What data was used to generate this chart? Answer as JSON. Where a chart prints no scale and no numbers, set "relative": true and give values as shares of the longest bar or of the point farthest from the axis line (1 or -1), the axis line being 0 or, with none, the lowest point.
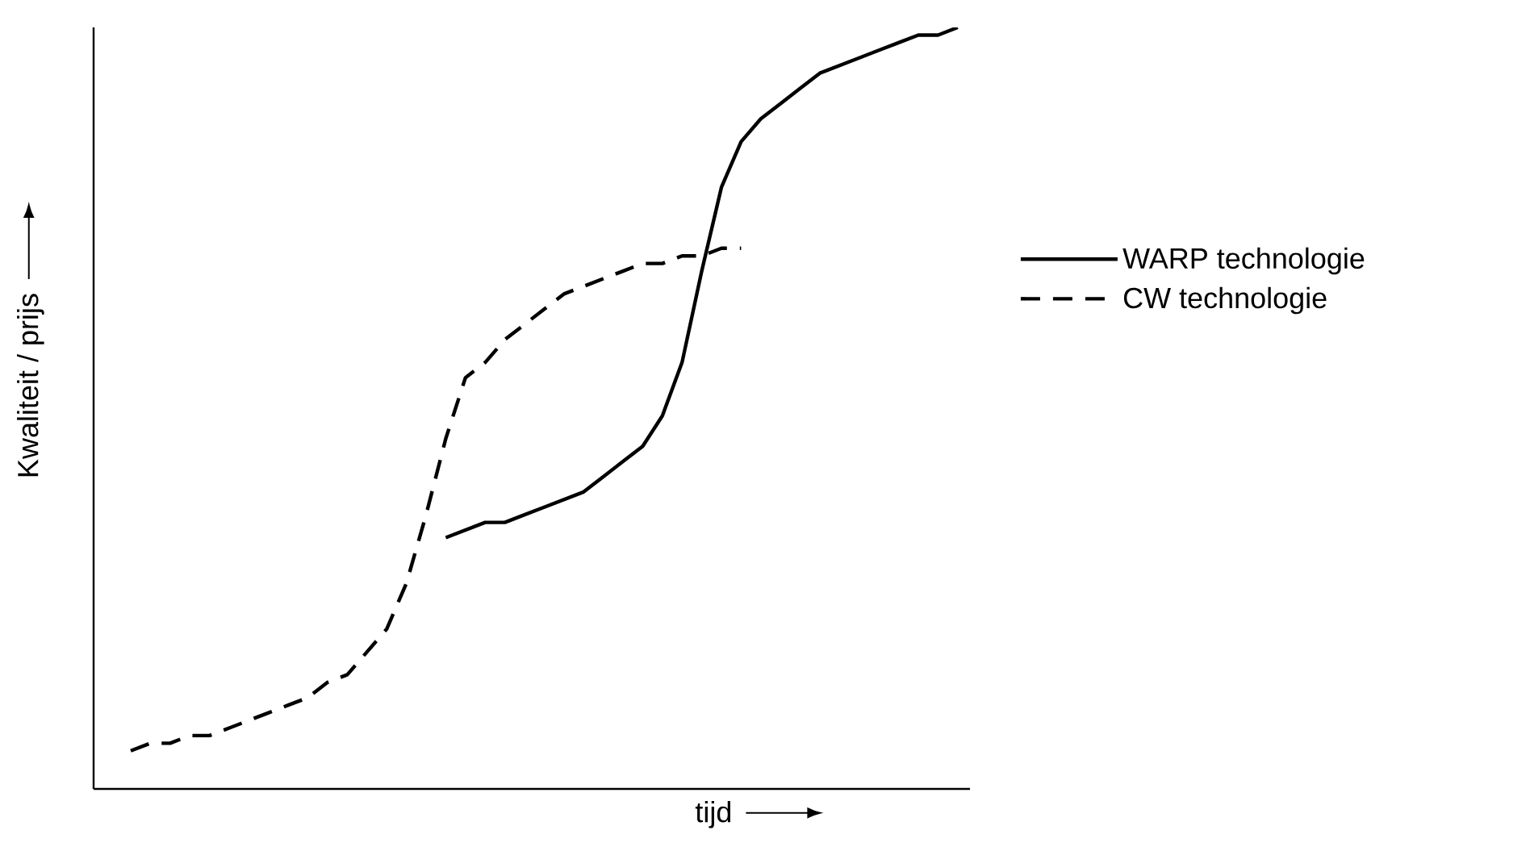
{
  "chart_data": {
    "type": "line",
    "relative": true,
    "xlabel": "tijd",
    "ylabel": "Kwaliteit / prijs",
    "categories": [
      null,
      null,
      null,
      null,
      null,
      null,
      null,
      null,
      null,
      null,
      null,
      null,
      null,
      null,
      null,
      null,
      null,
      null,
      null,
      null,
      null,
      null,
      null,
      null,
      null,
      null,
      null,
      null,
      null,
      null,
      null,
      null,
      null,
      null,
      null,
      null,
      null,
      null,
      null,
      null,
      null,
      null,
      null
    ],
    "series": [
      {
        "name": "WARP technologie",
        "color": "#000000",
        "line_style": "solid",
        "values": [
          null,
          null,
          null,
          null,
          null,
          null,
          null,
          null,
          null,
          null,
          null,
          null,
          null,
          null,
          null,
          null,
          0.33,
          0.34,
          0.35,
          0.35,
          0.36,
          0.37,
          0.38,
          0.39,
          0.41,
          0.43,
          0.45,
          0.49,
          0.56,
          0.68,
          0.79,
          0.85,
          0.88,
          0.9,
          0.92,
          0.94,
          0.95,
          0.96,
          0.97,
          0.98,
          0.99,
          0.99,
          1.0
        ]
      },
      {
        "name": "CW technologie",
        "color": "#000000",
        "line_style": "dashed",
        "values": [
          0.05,
          0.06,
          0.06,
          0.07,
          0.07,
          0.08,
          0.09,
          0.1,
          0.11,
          0.12,
          0.14,
          0.15,
          0.18,
          0.21,
          0.27,
          0.36,
          0.46,
          0.54,
          0.56,
          0.59,
          0.61,
          0.63,
          0.65,
          0.66,
          0.67,
          0.68,
          0.69,
          0.69,
          0.7,
          0.7,
          0.71,
          0.71,
          null,
          null,
          null,
          null,
          null,
          null,
          null,
          null,
          null,
          null,
          null
        ]
      }
    ],
    "legend": "right",
    "marker": "none"
  }
}
